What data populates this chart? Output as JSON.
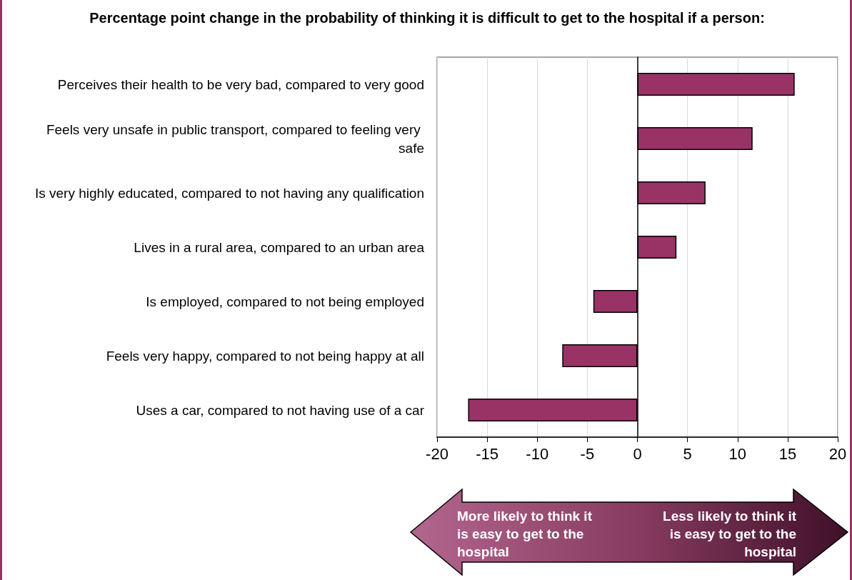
{
  "chart_data": {
    "type": "bar",
    "orientation": "horizontal",
    "title": "Percentage point change in the probability of thinking it is difficult to get to the hospital if a person:",
    "categories": [
      "Perceives their health to be very bad, compared to very good",
      "Feels very unsafe in public transport, compared to feeling very safe",
      "Is very highly educated, compared to not having any qualification",
      "Lives in a rural area, compared to an urban area",
      "Is employed, compared to not being employed",
      "Feels very happy, compared to not being happy at all",
      "Uses a car, compared to not having use of a car"
    ],
    "values": [
      15.7,
      11.5,
      6.8,
      3.9,
      -4.4,
      -7.5,
      -16.9
    ],
    "color": "#993366",
    "xlim": [
      -20,
      20
    ],
    "xticks": [
      -20,
      -15,
      -10,
      -5,
      0,
      5,
      10,
      15,
      20
    ],
    "grid": "x",
    "annotations": [
      "More likely to think it is easy to get to the hospital",
      "Less likely to think it is easy to get to the hospital"
    ]
  }
}
